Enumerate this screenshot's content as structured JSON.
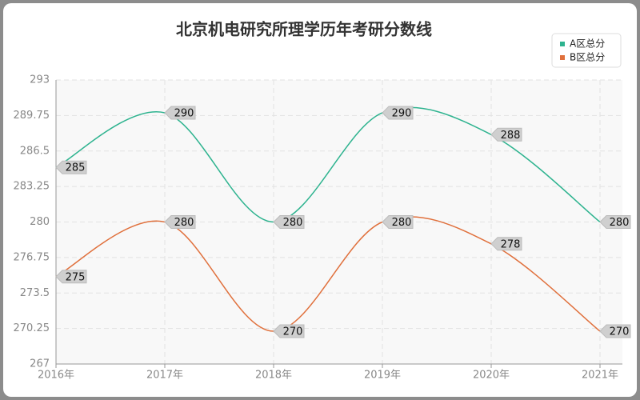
{
  "chart_data": {
    "type": "line",
    "title": "北京机电研究所理学历年考研分数线",
    "categories": [
      "2016年",
      "2017年",
      "2018年",
      "2019年",
      "2020年",
      "2021年"
    ],
    "series": [
      {
        "name": "A区总分",
        "color": "#2eb38f",
        "values": [
          285,
          290,
          280,
          290,
          288,
          280
        ]
      },
      {
        "name": "B区总分",
        "color": "#e0703c",
        "values": [
          275,
          280,
          270,
          280,
          278,
          270
        ]
      }
    ],
    "ylim": [
      267,
      293
    ],
    "yticks": [
      267,
      270.25,
      273.5,
      276.75,
      280,
      283.25,
      286.5,
      289.75,
      293
    ],
    "grid": true,
    "smooth": true,
    "legend": "top-right"
  }
}
